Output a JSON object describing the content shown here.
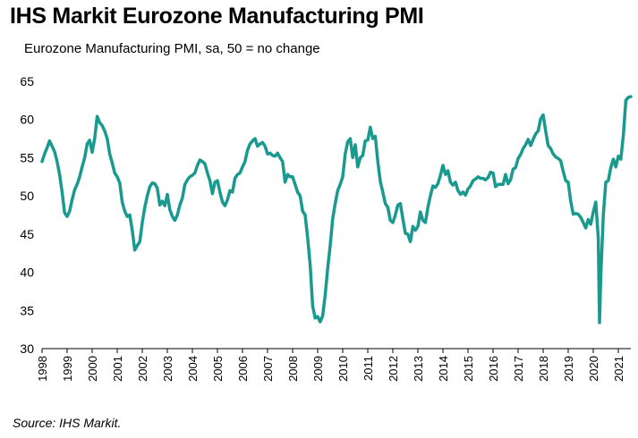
{
  "header": {
    "title": "IHS Markit Eurozone Manufacturing PMI",
    "subtitle": "Eurozone Manufacturing PMI, sa, 50 = no change"
  },
  "footer": {
    "source": "Source: IHS Markit."
  },
  "colors": {
    "line": "#1a9a8f",
    "axis": "#000000"
  },
  "chart_data": {
    "type": "line",
    "title": "IHS Markit Eurozone Manufacturing PMI",
    "subtitle": "Eurozone Manufacturing PMI, sa, 50 = no change",
    "xlabel": "",
    "ylabel": "",
    "ylim": [
      30,
      65
    ],
    "xlim": [
      1998.0,
      2021.5
    ],
    "grid": false,
    "legend": "none",
    "y_ticks": [
      30,
      35,
      40,
      45,
      50,
      55,
      60,
      65
    ],
    "x_ticks": [
      "1998",
      "1999",
      "2000",
      "2001",
      "2002",
      "2003",
      "2004",
      "2005",
      "2006",
      "2007",
      "2008",
      "2009",
      "2010",
      "2011",
      "2012",
      "2013",
      "2014",
      "2015",
      "2016",
      "2017",
      "2018",
      "2019",
      "2020",
      "2021"
    ],
    "series": [
      {
        "points": [
          [
            1998.0,
            54.5
          ],
          [
            1998.1,
            55.5
          ],
          [
            1998.2,
            56.3
          ],
          [
            1998.3,
            57.2
          ],
          [
            1998.4,
            56.5
          ],
          [
            1998.5,
            55.8
          ],
          [
            1998.6,
            54.5
          ],
          [
            1998.7,
            52.8
          ],
          [
            1998.8,
            50.5
          ],
          [
            1998.9,
            47.8
          ],
          [
            1999.0,
            47.3
          ],
          [
            1999.1,
            48.0
          ],
          [
            1999.2,
            49.5
          ],
          [
            1999.3,
            50.8
          ],
          [
            1999.4,
            51.5
          ],
          [
            1999.5,
            52.5
          ],
          [
            1999.6,
            53.8
          ],
          [
            1999.7,
            55.0
          ],
          [
            1999.8,
            56.8
          ],
          [
            1999.9,
            57.3
          ],
          [
            2000.0,
            55.7
          ],
          [
            2000.1,
            57.5
          ],
          [
            2000.2,
            60.4
          ],
          [
            2000.3,
            59.6
          ],
          [
            2000.4,
            59.2
          ],
          [
            2000.5,
            58.5
          ],
          [
            2000.6,
            57.5
          ],
          [
            2000.7,
            55.5
          ],
          [
            2000.8,
            54.3
          ],
          [
            2000.9,
            53.0
          ],
          [
            2001.0,
            52.5
          ],
          [
            2001.1,
            51.7
          ],
          [
            2001.2,
            49.2
          ],
          [
            2001.3,
            48.0
          ],
          [
            2001.4,
            47.3
          ],
          [
            2001.5,
            47.5
          ],
          [
            2001.6,
            45.5
          ],
          [
            2001.7,
            42.9
          ],
          [
            2001.8,
            43.5
          ],
          [
            2001.9,
            44.0
          ],
          [
            2002.0,
            46.5
          ],
          [
            2002.1,
            48.5
          ],
          [
            2002.2,
            50.0
          ],
          [
            2002.3,
            51.2
          ],
          [
            2002.4,
            51.7
          ],
          [
            2002.5,
            51.6
          ],
          [
            2002.6,
            51.0
          ],
          [
            2002.7,
            48.8
          ],
          [
            2002.8,
            49.3
          ],
          [
            2002.9,
            48.7
          ],
          [
            2003.0,
            50.2
          ],
          [
            2003.1,
            48.2
          ],
          [
            2003.2,
            47.3
          ],
          [
            2003.3,
            46.8
          ],
          [
            2003.4,
            47.5
          ],
          [
            2003.5,
            48.8
          ],
          [
            2003.6,
            49.7
          ],
          [
            2003.7,
            51.5
          ],
          [
            2003.8,
            52.1
          ],
          [
            2003.9,
            52.5
          ],
          [
            2004.0,
            52.7
          ],
          [
            2004.1,
            53.0
          ],
          [
            2004.2,
            54.0
          ],
          [
            2004.3,
            54.7
          ],
          [
            2004.4,
            54.5
          ],
          [
            2004.5,
            54.2
          ],
          [
            2004.6,
            53.0
          ],
          [
            2004.7,
            52.0
          ],
          [
            2004.8,
            50.3
          ],
          [
            2004.9,
            51.8
          ],
          [
            2005.0,
            52.0
          ],
          [
            2005.1,
            50.5
          ],
          [
            2005.2,
            49.2
          ],
          [
            2005.3,
            48.7
          ],
          [
            2005.4,
            49.5
          ],
          [
            2005.5,
            50.7
          ],
          [
            2005.6,
            50.5
          ],
          [
            2005.7,
            52.3
          ],
          [
            2005.8,
            52.8
          ],
          [
            2005.9,
            53.0
          ],
          [
            2006.0,
            53.8
          ],
          [
            2006.1,
            54.5
          ],
          [
            2006.2,
            56.0
          ],
          [
            2006.3,
            56.8
          ],
          [
            2006.4,
            57.2
          ],
          [
            2006.5,
            57.5
          ],
          [
            2006.6,
            56.5
          ],
          [
            2006.7,
            56.8
          ],
          [
            2006.8,
            57.0
          ],
          [
            2006.9,
            56.5
          ],
          [
            2007.0,
            55.5
          ],
          [
            2007.1,
            55.6
          ],
          [
            2007.2,
            55.3
          ],
          [
            2007.3,
            55.2
          ],
          [
            2007.4,
            55.6
          ],
          [
            2007.5,
            55.0
          ],
          [
            2007.6,
            54.5
          ],
          [
            2007.7,
            51.8
          ],
          [
            2007.8,
            52.8
          ],
          [
            2007.9,
            52.5
          ],
          [
            2008.0,
            52.5
          ],
          [
            2008.1,
            51.5
          ],
          [
            2008.2,
            50.5
          ],
          [
            2008.3,
            50.0
          ],
          [
            2008.4,
            48.0
          ],
          [
            2008.5,
            47.5
          ],
          [
            2008.6,
            44.5
          ],
          [
            2008.7,
            41.0
          ],
          [
            2008.8,
            35.6
          ],
          [
            2008.9,
            34.0
          ],
          [
            2009.0,
            34.2
          ],
          [
            2009.1,
            33.5
          ],
          [
            2009.2,
            34.3
          ],
          [
            2009.3,
            37.0
          ],
          [
            2009.4,
            40.5
          ],
          [
            2009.5,
            43.5
          ],
          [
            2009.6,
            47.0
          ],
          [
            2009.7,
            49.0
          ],
          [
            2009.8,
            50.7
          ],
          [
            2009.9,
            51.5
          ],
          [
            2010.0,
            52.5
          ],
          [
            2010.1,
            55.5
          ],
          [
            2010.2,
            57.1
          ],
          [
            2010.3,
            57.5
          ],
          [
            2010.4,
            55.0
          ],
          [
            2010.5,
            56.7
          ],
          [
            2010.6,
            53.8
          ],
          [
            2010.7,
            55.0
          ],
          [
            2010.8,
            55.3
          ],
          [
            2010.9,
            57.2
          ],
          [
            2011.0,
            57.3
          ],
          [
            2011.1,
            59.0
          ],
          [
            2011.2,
            57.5
          ],
          [
            2011.3,
            57.8
          ],
          [
            2011.4,
            54.5
          ],
          [
            2011.5,
            51.9
          ],
          [
            2011.6,
            50.5
          ],
          [
            2011.7,
            49.0
          ],
          [
            2011.8,
            48.5
          ],
          [
            2011.9,
            46.8
          ],
          [
            2012.0,
            46.5
          ],
          [
            2012.1,
            47.5
          ],
          [
            2012.2,
            48.8
          ],
          [
            2012.3,
            49.0
          ],
          [
            2012.4,
            47.0
          ],
          [
            2012.5,
            45.1
          ],
          [
            2012.6,
            45.0
          ],
          [
            2012.7,
            44.0
          ],
          [
            2012.8,
            46.0
          ],
          [
            2012.9,
            45.5
          ],
          [
            2013.0,
            46.0
          ],
          [
            2013.1,
            47.9
          ],
          [
            2013.2,
            46.8
          ],
          [
            2013.3,
            46.5
          ],
          [
            2013.4,
            48.5
          ],
          [
            2013.5,
            50.0
          ],
          [
            2013.6,
            51.3
          ],
          [
            2013.7,
            51.1
          ],
          [
            2013.8,
            51.6
          ],
          [
            2013.9,
            52.7
          ],
          [
            2014.0,
            54.0
          ],
          [
            2014.1,
            52.8
          ],
          [
            2014.2,
            53.3
          ],
          [
            2014.3,
            51.8
          ],
          [
            2014.4,
            51.4
          ],
          [
            2014.5,
            51.8
          ],
          [
            2014.6,
            50.7
          ],
          [
            2014.7,
            50.2
          ],
          [
            2014.8,
            50.5
          ],
          [
            2014.9,
            50.1
          ],
          [
            2015.0,
            50.9
          ],
          [
            2015.1,
            51.3
          ],
          [
            2015.2,
            52.0
          ],
          [
            2015.3,
            52.2
          ],
          [
            2015.4,
            52.5
          ],
          [
            2015.5,
            52.3
          ],
          [
            2015.6,
            52.3
          ],
          [
            2015.7,
            52.1
          ],
          [
            2015.8,
            52.4
          ],
          [
            2015.9,
            53.1
          ],
          [
            2016.0,
            53.0
          ],
          [
            2016.1,
            51.2
          ],
          [
            2016.2,
            51.5
          ],
          [
            2016.3,
            51.5
          ],
          [
            2016.4,
            51.5
          ],
          [
            2016.5,
            52.8
          ],
          [
            2016.6,
            51.6
          ],
          [
            2016.7,
            52.1
          ],
          [
            2016.8,
            53.5
          ],
          [
            2016.9,
            53.7
          ],
          [
            2017.0,
            54.9
          ],
          [
            2017.1,
            55.4
          ],
          [
            2017.2,
            56.2
          ],
          [
            2017.3,
            56.7
          ],
          [
            2017.4,
            57.4
          ],
          [
            2017.5,
            56.6
          ],
          [
            2017.6,
            57.4
          ],
          [
            2017.7,
            58.1
          ],
          [
            2017.8,
            58.5
          ],
          [
            2017.9,
            60.1
          ],
          [
            2018.0,
            60.6
          ],
          [
            2018.1,
            58.5
          ],
          [
            2018.2,
            56.6
          ],
          [
            2018.3,
            56.2
          ],
          [
            2018.4,
            55.5
          ],
          [
            2018.5,
            55.1
          ],
          [
            2018.6,
            54.9
          ],
          [
            2018.7,
            54.6
          ],
          [
            2018.8,
            53.2
          ],
          [
            2018.9,
            52.0
          ],
          [
            2019.0,
            51.8
          ],
          [
            2019.1,
            49.3
          ],
          [
            2019.2,
            47.6
          ],
          [
            2019.3,
            47.7
          ],
          [
            2019.4,
            47.6
          ],
          [
            2019.5,
            47.2
          ],
          [
            2019.6,
            46.5
          ],
          [
            2019.7,
            45.8
          ],
          [
            2019.8,
            46.9
          ],
          [
            2019.9,
            46.3
          ],
          [
            2020.0,
            47.9
          ],
          [
            2020.1,
            49.2
          ],
          [
            2020.2,
            44.5
          ],
          [
            2020.25,
            33.4
          ],
          [
            2020.3,
            39.4
          ],
          [
            2020.4,
            47.4
          ],
          [
            2020.5,
            51.8
          ],
          [
            2020.6,
            52.0
          ],
          [
            2020.7,
            53.7
          ],
          [
            2020.8,
            54.8
          ],
          [
            2020.9,
            53.8
          ],
          [
            2021.0,
            55.2
          ],
          [
            2021.1,
            54.8
          ],
          [
            2021.2,
            57.9
          ],
          [
            2021.3,
            62.5
          ],
          [
            2021.4,
            62.9
          ],
          [
            2021.5,
            63.0
          ]
        ]
      }
    ]
  }
}
